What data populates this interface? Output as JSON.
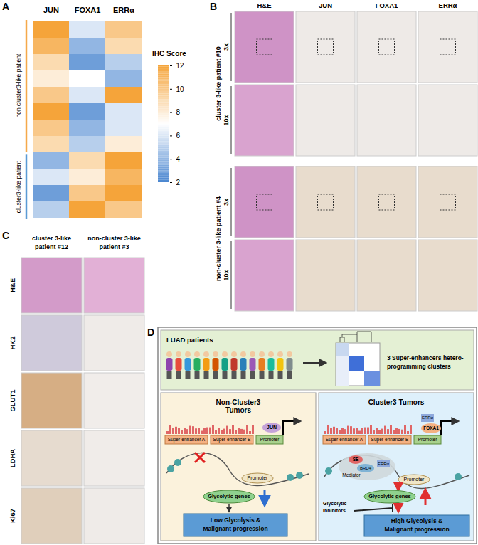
{
  "panel_labels": [
    "A",
    "B",
    "C",
    "D"
  ],
  "chart_data": {
    "type": "heatmap",
    "columns": [
      "JUN",
      "FOXA1",
      "ERRα"
    ],
    "groups": [
      {
        "name": "non cluster3-like patient",
        "color": "#f5a94a",
        "cells": [
          [
            12,
            6,
            10
          ],
          [
            11,
            4,
            9
          ],
          [
            9,
            3,
            5
          ],
          [
            8,
            7,
            4
          ],
          [
            10,
            6,
            12
          ],
          [
            12,
            3,
            6
          ],
          [
            10,
            4,
            6
          ],
          [
            9,
            5,
            8
          ]
        ]
      },
      {
        "name": "cluster3-like patient",
        "color": "#5b9bd5",
        "cells": [
          [
            4,
            9,
            12
          ],
          [
            6,
            8,
            11
          ],
          [
            3,
            10,
            12
          ],
          [
            5,
            12,
            10
          ]
        ]
      }
    ],
    "colorbar": {
      "label": "IHC Score",
      "range": [
        2,
        12
      ],
      "ticks": [
        2,
        4,
        6,
        8,
        10,
        12
      ],
      "colors": [
        "#4a86d0",
        "#ffffff",
        "#f5a43a"
      ]
    }
  },
  "panel_B": {
    "columns": [
      "H&E",
      "JUN",
      "FOXA1",
      "ERRα"
    ],
    "rows": [
      {
        "patient": "cluster 3-like patient #10",
        "magnifications": [
          "3x",
          "10x"
        ]
      },
      {
        "patient": "non-cluster 3-like patient #4",
        "magnifications": [
          "3x",
          "10x"
        ]
      }
    ]
  },
  "panel_C": {
    "columns": [
      [
        "cluster 3-like",
        "patient #12"
      ],
      [
        "non-cluster 3-like",
        "patient #3"
      ]
    ],
    "rows": [
      "H&E",
      "HK2",
      "GLUT1",
      "LDHA",
      "Ki67"
    ]
  },
  "panel_D": {
    "top": {
      "label": "LUAD patients",
      "result": [
        "3 Super-enhancers hetero-",
        "programming clusters"
      ]
    },
    "left": {
      "title": [
        "Non-Cluster3",
        "Tumors"
      ],
      "se_a": "Super-enhancer A",
      "se_b": "Super-enhancer B",
      "promoter": "Promoter",
      "factor": "JUN",
      "loop_promoter": "Promoter",
      "genes": "Glycolytic genes",
      "outcome": [
        "Low Glycolysis &",
        "Malignant progression"
      ]
    },
    "right": {
      "title": [
        "Cluster3 Tumors"
      ],
      "se_a": "Super-enhancer A",
      "se_b": "Super-enhancer B",
      "promoter": "Promoter",
      "factors": [
        "ERRα",
        "FOXA1"
      ],
      "se": "SE",
      "brd4": "BRD4",
      "loop_factor": "ERRα",
      "mediator": "Mediator",
      "loop_promoter": "Promoter",
      "genes": "Glycolytic genes",
      "inhibitors": [
        "Glycolytic",
        "Inhibitors"
      ],
      "outcome": [
        "High Glycolysis &",
        "Malignant progression"
      ]
    }
  }
}
